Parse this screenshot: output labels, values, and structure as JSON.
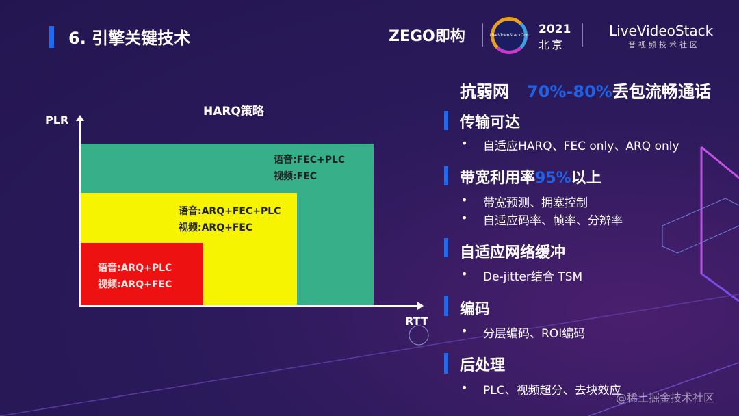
{
  "header": {
    "title": "6. 引擎关键技术",
    "logos": {
      "zego": "ZEGO即构",
      "conf_badge": "LiveVideoStackCon",
      "year": "2021",
      "city": "北京",
      "lvs": "LiveVideoStack",
      "lvs_sub": "音视频技术社区"
    }
  },
  "diagram": {
    "title": "HARQ策略",
    "y_axis": "PLR",
    "x_axis": "RTT",
    "regions": [
      {
        "color": "#37b08a",
        "line1": "语音:FEC+PLC",
        "line2": "视频:FEC"
      },
      {
        "color": "#f6f400",
        "line1": "语音:ARQ+FEC+PLC",
        "line2": "视频:ARQ+FEC"
      },
      {
        "color": "#ee1111",
        "line1": "语音:ARQ+PLC",
        "line2": "视频:ARQ+FEC"
      }
    ]
  },
  "right": {
    "headline": {
      "prefix": "抗弱网",
      "highlight": "70%-80%",
      "suffix": "丢包流畅通话"
    },
    "sections": [
      {
        "title": "传输可达",
        "items": [
          "自适应HARQ、FEC only、ARQ only"
        ]
      },
      {
        "title_prefix": "带宽利用率",
        "title_highlight": "95%",
        "title_suffix": "以上",
        "items": [
          "带宽预测、拥塞控制",
          "自适应码率、帧率、分辨率"
        ]
      },
      {
        "title": "自适应网络缓冲",
        "items": [
          "De-jitter结合 TSM"
        ]
      },
      {
        "title": "编码",
        "items": [
          "分层编码、ROI编码"
        ]
      },
      {
        "title": "后处理",
        "items": [
          "PLC、视频超分、去块效应"
        ]
      }
    ],
    "bullet": "•"
  },
  "watermark": "@稀土掘金技术社区",
  "colors": {
    "accent": "#1b6cf2",
    "background": "#2c1a5c"
  }
}
